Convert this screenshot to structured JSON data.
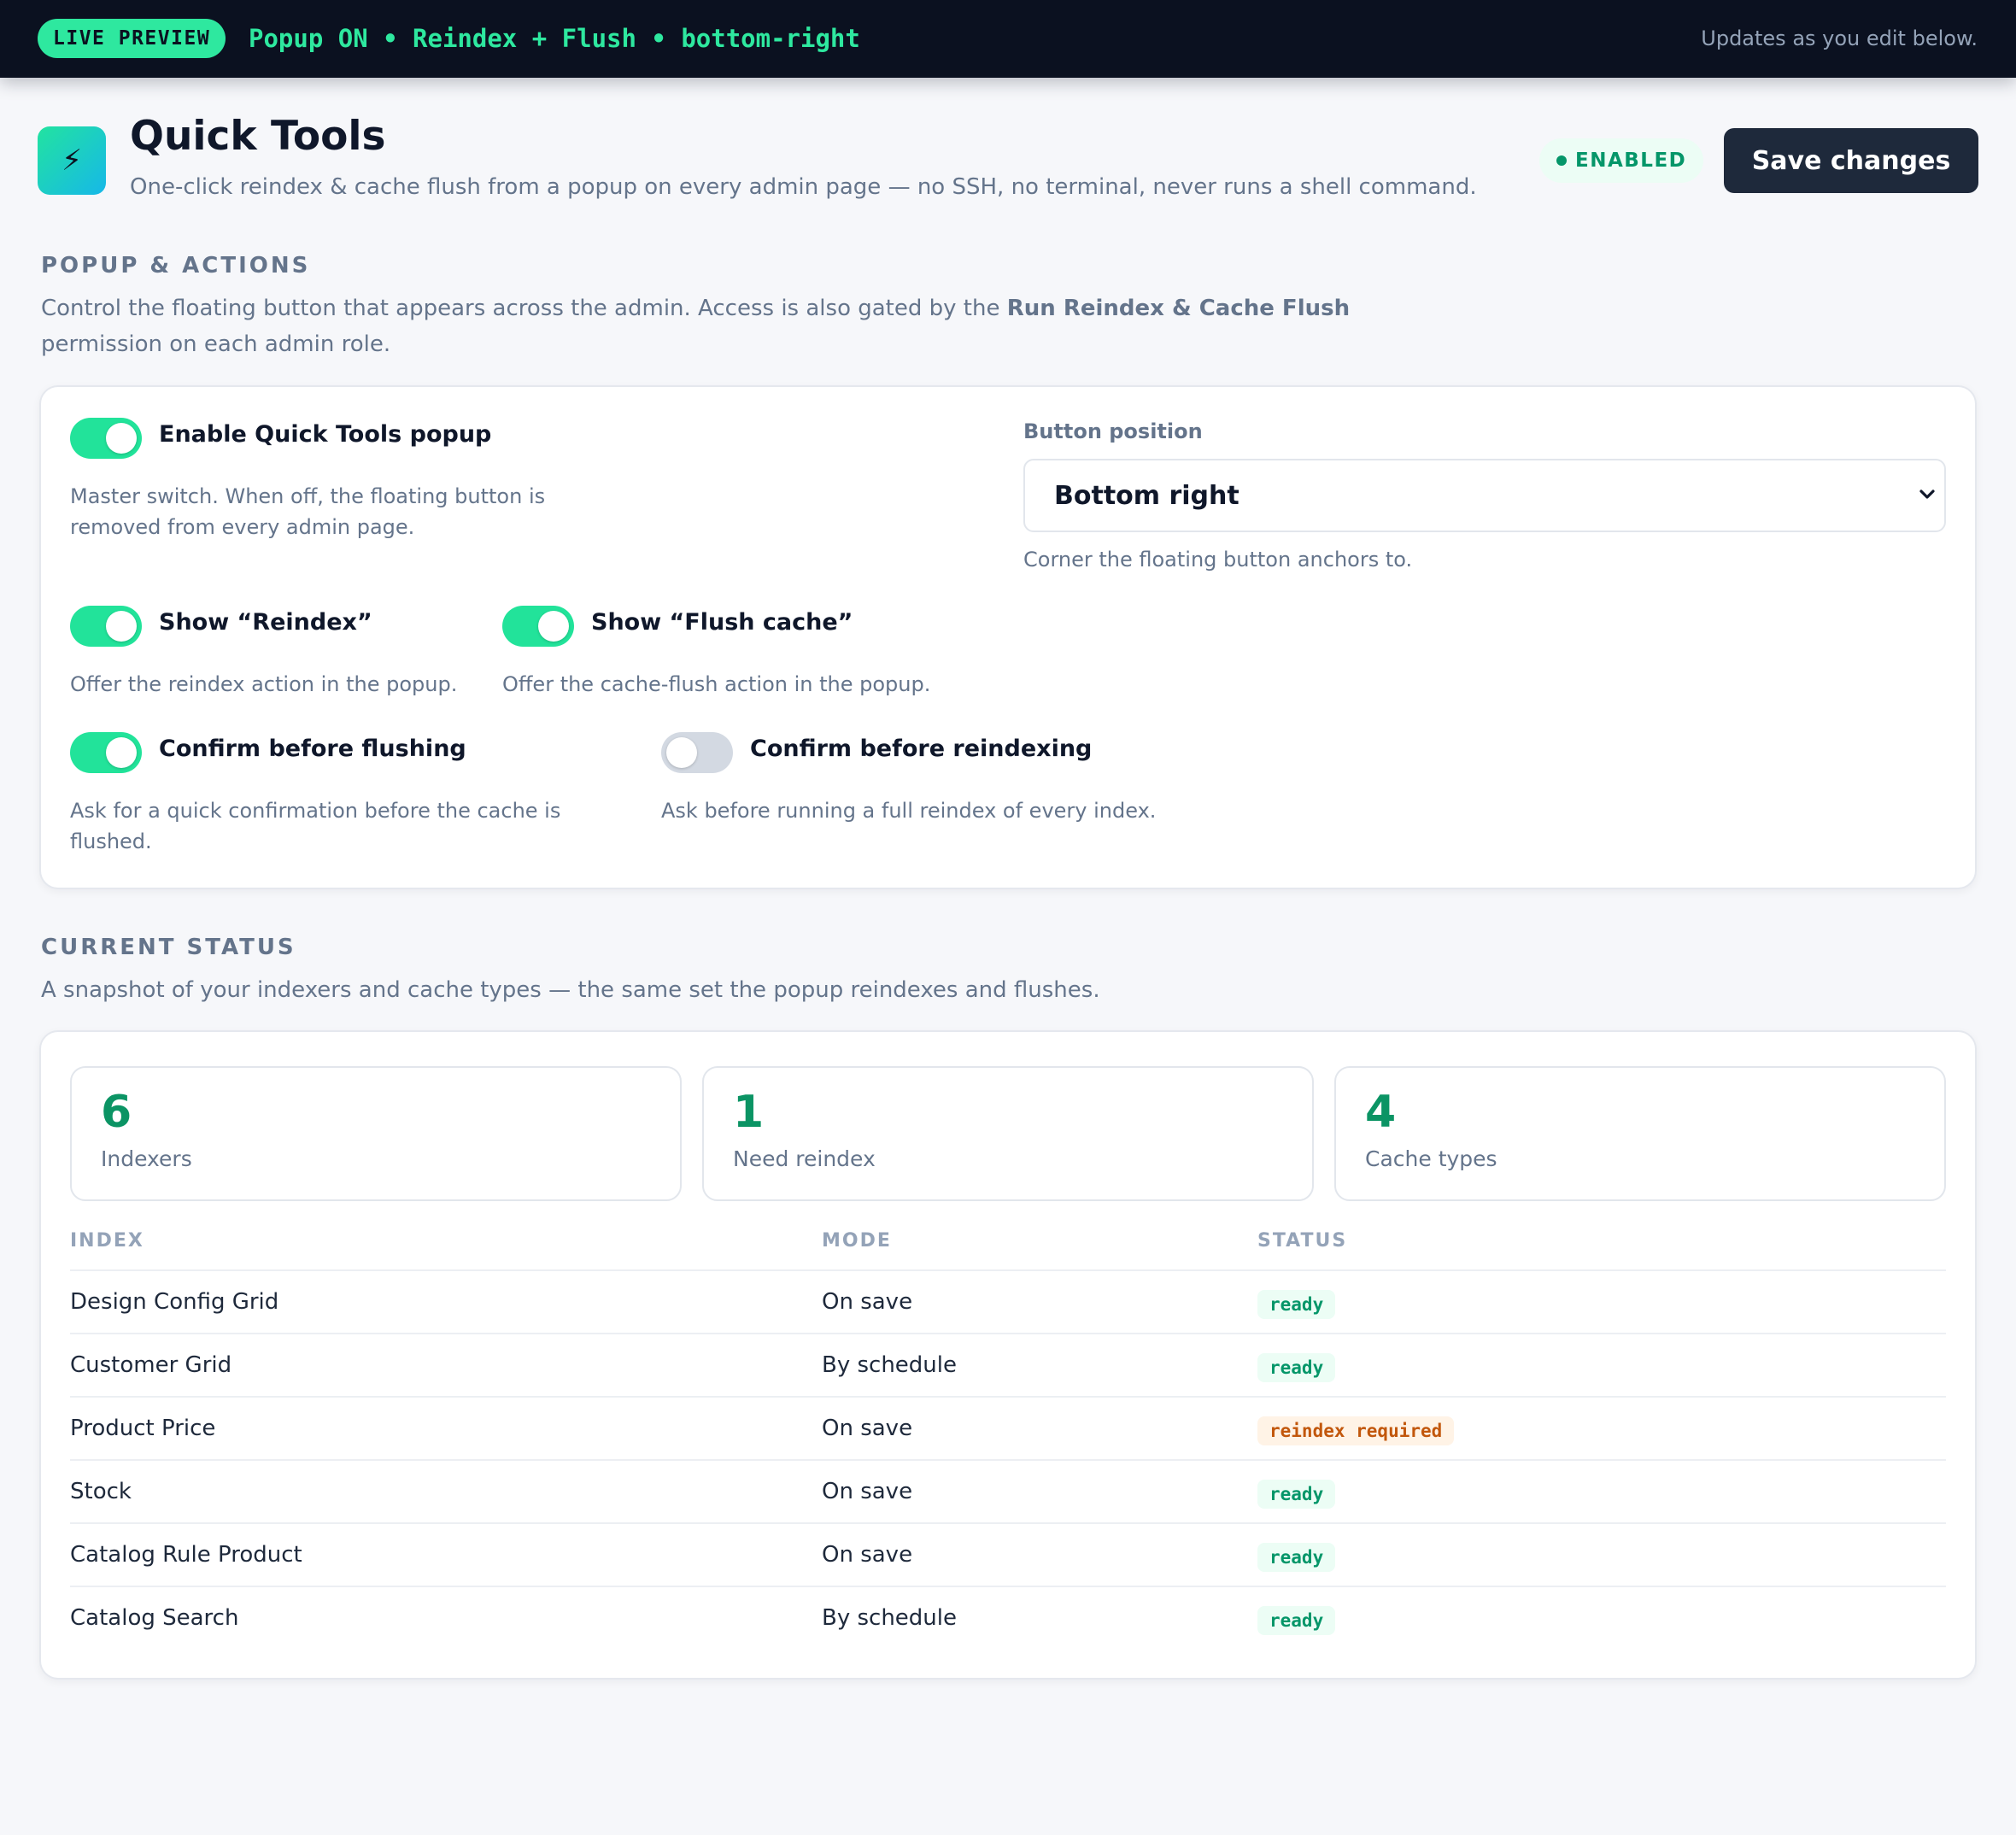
{
  "topbar": {
    "preview_label": "LIVE PREVIEW",
    "summary": "Popup ON • Reindex + Flush • bottom-right",
    "hint": "Updates as you edit below."
  },
  "header": {
    "icon": "lightning-icon",
    "icon_glyph": "⚡",
    "title": "Quick Tools",
    "subtitle": "One-click reindex & cache flush from a popup on every admin page — no SSH, no terminal, never runs a shell command.",
    "status": "ENABLED",
    "save_label": "Save changes"
  },
  "popup_section": {
    "heading": "POPUP & ACTIONS",
    "desc_pre": "Control the floating button that appears across the admin. Access is also gated by the ",
    "desc_bold": "Run Reindex & Cache Flush",
    "desc_post": "permission on each admin role.",
    "enable_popup": {
      "label": "Enable Quick Tools popup",
      "help_line1": "Master switch. When off, the floating button is",
      "help_line2": "removed from every admin page.",
      "on": true
    },
    "position": {
      "label": "Button position",
      "value": "Bottom right",
      "help": "Corner the floating button anchors to."
    },
    "show_reindex": {
      "label": "Show “Reindex”",
      "help": "Offer the reindex action in the popup.",
      "on": true
    },
    "show_flush": {
      "label": "Show “Flush cache”",
      "help": "Offer the cache-flush action in the popup.",
      "on": true
    },
    "confirm_flush": {
      "label": "Confirm before flushing",
      "help_line1": "Ask for a quick confirmation before the cache is",
      "help_line2": "flushed.",
      "on": true
    },
    "confirm_reindex": {
      "label": "Confirm before reindexing",
      "help": "Ask before running a full reindex of every index.",
      "on": false
    }
  },
  "status_section": {
    "heading": "CURRENT STATUS",
    "desc": "A snapshot of your indexers and cache types — the same set the popup reindexes and flushes.",
    "stats": [
      {
        "value": "6",
        "label": "Indexers"
      },
      {
        "value": "1",
        "label": "Need reindex"
      },
      {
        "value": "4",
        "label": "Cache types"
      }
    ],
    "columns": {
      "index": "INDEX",
      "mode": "MODE",
      "status": "STATUS"
    },
    "rows": [
      {
        "index": "Design Config Grid",
        "mode": "On save",
        "status": "ready"
      },
      {
        "index": "Customer Grid",
        "mode": "By schedule",
        "status": "ready"
      },
      {
        "index": "Product Price",
        "mode": "On save",
        "status": "reindex required"
      },
      {
        "index": "Stock",
        "mode": "On save",
        "status": "ready"
      },
      {
        "index": "Catalog Rule Product",
        "mode": "On save",
        "status": "ready"
      },
      {
        "index": "Catalog Search",
        "mode": "By schedule",
        "status": "ready"
      }
    ]
  },
  "colors": {
    "accent": "#2ee89f",
    "dark": "#0b1120",
    "ready": "#059669",
    "warning": "#c2570c"
  }
}
